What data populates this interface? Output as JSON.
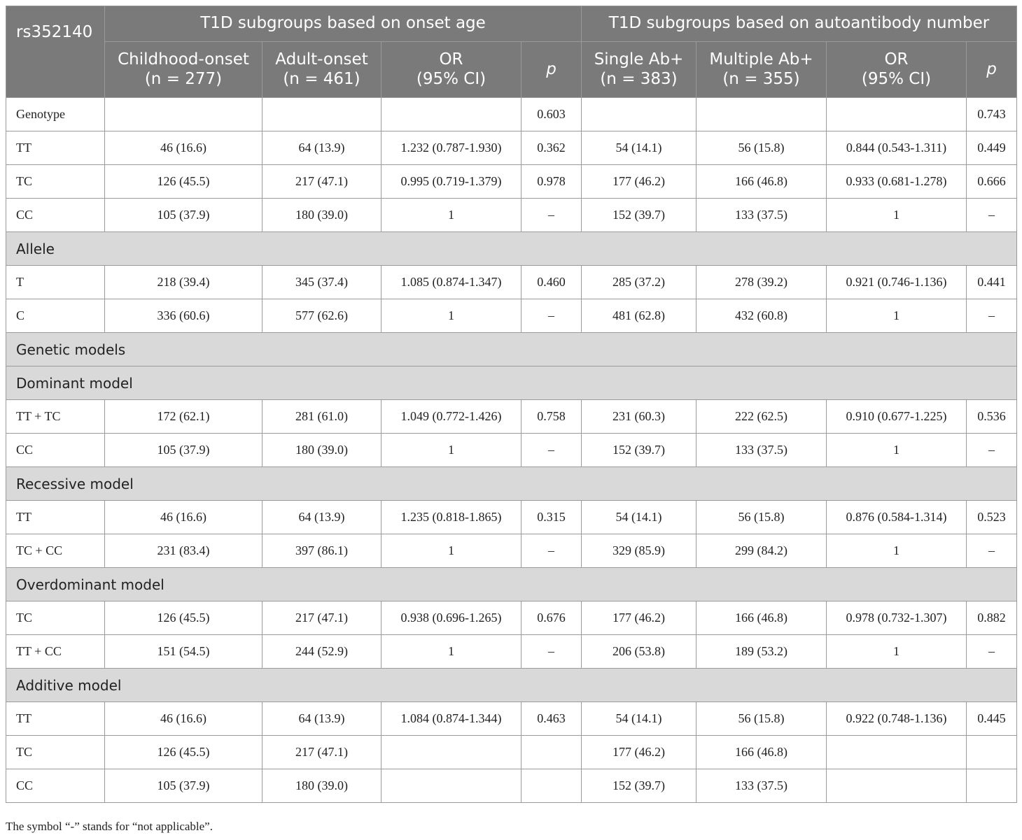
{
  "header": {
    "corner": "rs352140",
    "group1": "T1D subgroups based on onset age",
    "group2": "T1D subgroups based on autoantibody number",
    "col1": [
      "Childhood-onset",
      "(n = 277)"
    ],
    "col2": [
      "Adult-onset",
      "(n = 461)"
    ],
    "col3": [
      "OR",
      "(95% CI)"
    ],
    "col4": "p",
    "col5": [
      "Single Ab+",
      "(n = 383)"
    ],
    "col6": [
      "Multiple Ab+",
      "(n = 355)"
    ],
    "col7": [
      "OR",
      "(95% CI)"
    ],
    "col8": "p"
  },
  "rows": [
    {
      "type": "data",
      "cells": [
        "Genotype",
        "",
        "",
        "",
        "0.603",
        "",
        "",
        "",
        "0.743"
      ]
    },
    {
      "type": "data",
      "cells": [
        "TT",
        "46 (16.6)",
        "64 (13.9)",
        "1.232 (0.787-1.930)",
        "0.362",
        "54 (14.1)",
        "56 (15.8)",
        "0.844 (0.543-1.311)",
        "0.449"
      ]
    },
    {
      "type": "data",
      "cells": [
        "TC",
        "126 (45.5)",
        "217 (47.1)",
        "0.995 (0.719-1.379)",
        "0.978",
        "177 (46.2)",
        "166 (46.8)",
        "0.933 (0.681-1.278)",
        "0.666"
      ]
    },
    {
      "type": "data",
      "cells": [
        "CC",
        "105 (37.9)",
        "180 (39.0)",
        "1",
        "–",
        "152 (39.7)",
        "133 (37.5)",
        "1",
        "–"
      ]
    },
    {
      "type": "section",
      "label": "Allele"
    },
    {
      "type": "data",
      "cells": [
        "T",
        "218 (39.4)",
        "345 (37.4)",
        "1.085 (0.874-1.347)",
        "0.460",
        "285 (37.2)",
        "278 (39.2)",
        "0.921 (0.746-1.136)",
        "0.441"
      ]
    },
    {
      "type": "data",
      "cells": [
        "C",
        "336 (60.6)",
        "577 (62.6)",
        "1",
        "–",
        "481 (62.8)",
        "432 (60.8)",
        "1",
        "–"
      ]
    },
    {
      "type": "section",
      "label": "Genetic models"
    },
    {
      "type": "section",
      "label": "Dominant model"
    },
    {
      "type": "data",
      "cells": [
        "TT + TC",
        "172 (62.1)",
        "281 (61.0)",
        "1.049 (0.772-1.426)",
        "0.758",
        "231 (60.3)",
        "222 (62.5)",
        "0.910 (0.677-1.225)",
        "0.536"
      ]
    },
    {
      "type": "data",
      "cells": [
        "CC",
        "105 (37.9)",
        "180 (39.0)",
        "1",
        "–",
        "152 (39.7)",
        "133 (37.5)",
        "1",
        "–"
      ]
    },
    {
      "type": "section",
      "label": "Recessive model"
    },
    {
      "type": "data",
      "cells": [
        "TT",
        "46 (16.6)",
        "64 (13.9)",
        "1.235 (0.818-1.865)",
        "0.315",
        "54 (14.1)",
        "56 (15.8)",
        "0.876 (0.584-1.314)",
        "0.523"
      ]
    },
    {
      "type": "data",
      "cells": [
        "TC + CC",
        "231 (83.4)",
        "397 (86.1)",
        "1",
        "–",
        "329 (85.9)",
        "299 (84.2)",
        "1",
        "–"
      ]
    },
    {
      "type": "section",
      "label": "Overdominant model"
    },
    {
      "type": "data",
      "cells": [
        "TC",
        "126 (45.5)",
        "217 (47.1)",
        "0.938 (0.696-1.265)",
        "0.676",
        "177 (46.2)",
        "166 (46.8)",
        "0.978 (0.732-1.307)",
        "0.882"
      ]
    },
    {
      "type": "data",
      "cells": [
        "TT + CC",
        "151 (54.5)",
        "244 (52.9)",
        "1",
        "–",
        "206 (53.8)",
        "189 (53.2)",
        "1",
        "–"
      ]
    },
    {
      "type": "section",
      "label": "Additive model"
    },
    {
      "type": "data",
      "cells": [
        "TT",
        "46 (16.6)",
        "64 (13.9)",
        "1.084 (0.874-1.344)",
        "0.463",
        "54 (14.1)",
        "56 (15.8)",
        "0.922 (0.748-1.136)",
        "0.445"
      ]
    },
    {
      "type": "data",
      "cells": [
        "TC",
        "126 (45.5)",
        "217 (47.1)",
        "",
        "",
        "177 (46.2)",
        "166 (46.8)",
        "",
        ""
      ]
    },
    {
      "type": "data",
      "cells": [
        "CC",
        "105 (37.9)",
        "180 (39.0)",
        "",
        "",
        "152 (39.7)",
        "133 (37.5)",
        "",
        ""
      ]
    }
  ],
  "footnote": "The symbol “-” stands for “not applicable”."
}
